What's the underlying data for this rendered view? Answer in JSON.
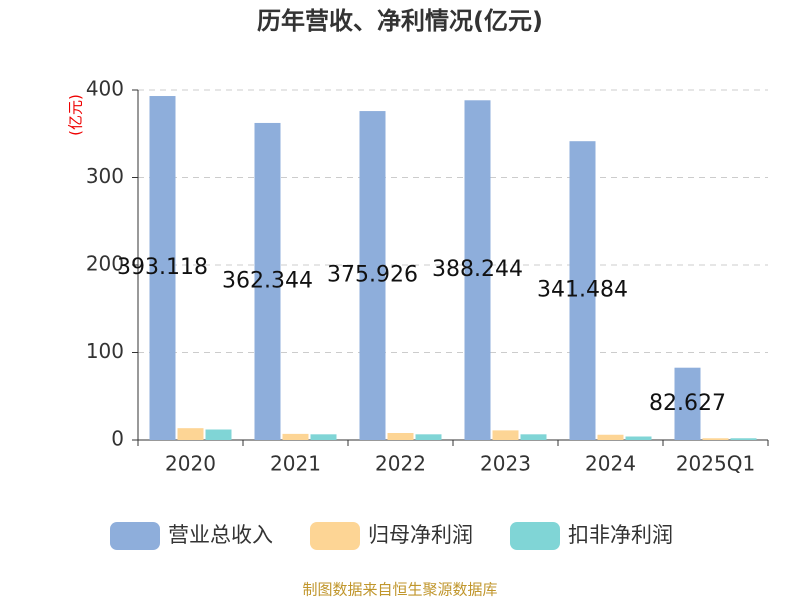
{
  "chart_data": {
    "type": "bar",
    "title": "历年营收、净利情况(亿元)",
    "y_label": "(亿元)",
    "categories": [
      "2020",
      "2021",
      "2022",
      "2023",
      "2024",
      "2025Q1"
    ],
    "series": [
      {
        "name": "营业总收入",
        "color": "#8eaedb",
        "values": [
          393.118,
          362.344,
          375.926,
          388.244,
          341.484,
          82.627
        ],
        "show_labels": true
      },
      {
        "name": "归母净利润",
        "color": "#fdd595",
        "values": [
          13.5,
          7,
          8,
          11,
          6,
          2
        ]
      },
      {
        "name": "扣非净利润",
        "color": "#80d5d6",
        "values": [
          12,
          6.5,
          6.5,
          6.5,
          4,
          2
        ]
      }
    ],
    "ylim": [
      0,
      400
    ],
    "yticks": [
      0,
      100,
      200,
      300,
      400
    ],
    "grid": true,
    "source": "制图数据来自恒生聚源数据库"
  }
}
